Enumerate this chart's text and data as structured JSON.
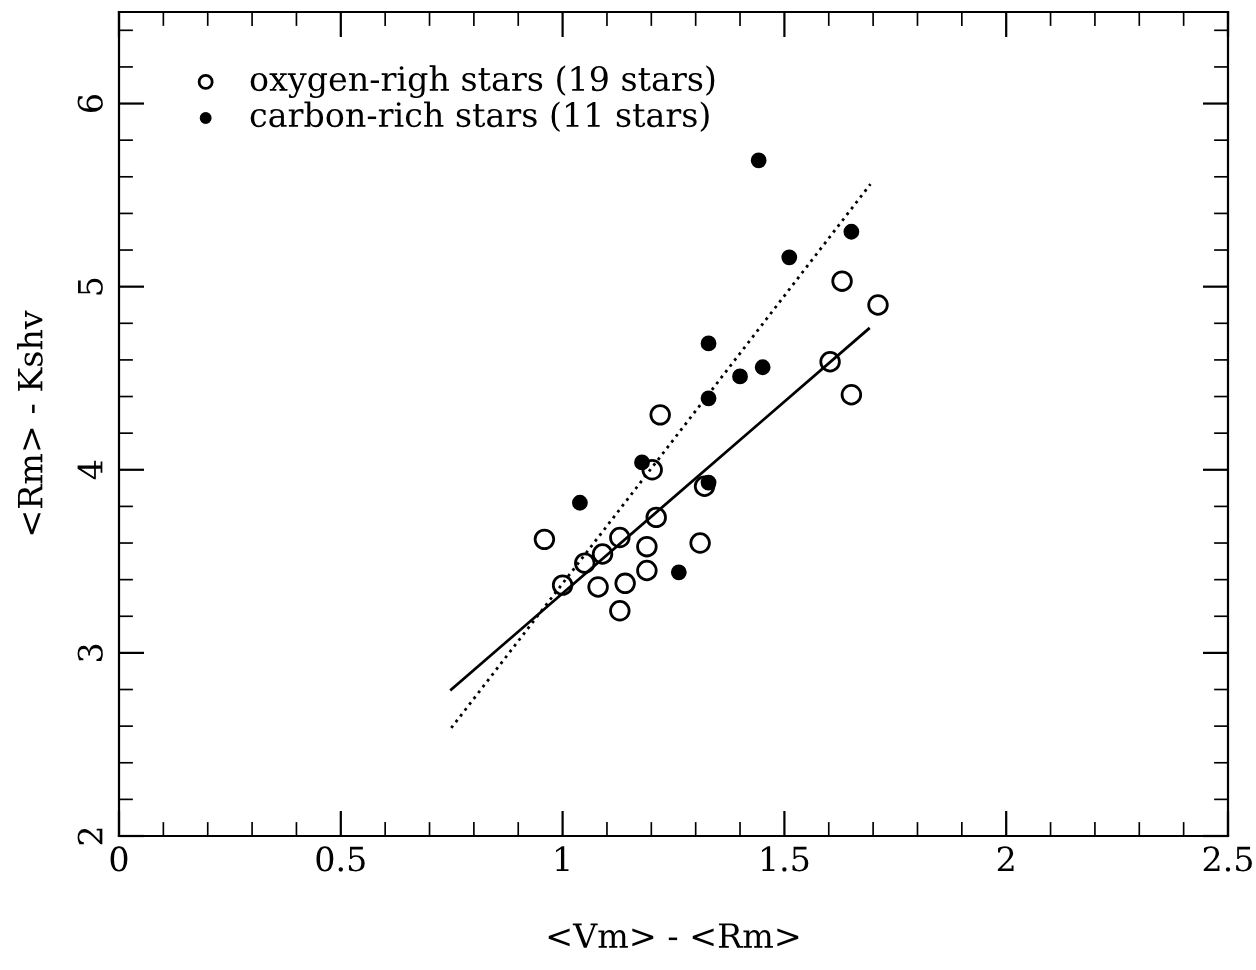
{
  "chart_data": {
    "type": "scatter",
    "xlabel": "<Vm> - <Rm>",
    "ylabel": "<Rm> - Kshv",
    "xlim": [
      0,
      2.5
    ],
    "ylim": [
      2,
      6.5
    ],
    "xticks": [
      0,
      0.5,
      1,
      1.5,
      2,
      2.5
    ],
    "yticks": [
      2,
      3,
      4,
      5,
      6
    ],
    "grid": false,
    "legend": "top left",
    "series": [
      {
        "name": "oxygen-righ stars (19 stars)",
        "color": "#000000",
        "marker": "circle",
        "x": [
          1.63,
          1.711,
          1.603,
          1.651,
          1.22,
          1.202,
          1.32,
          0.959,
          1.211,
          1.129,
          1.19,
          1.31,
          1.09,
          1.05,
          1.19,
          1.0,
          1.08,
          1.141,
          1.129
        ],
        "values": [
          5.03,
          4.9,
          4.59,
          4.41,
          4.3,
          4.0,
          3.91,
          3.62,
          3.74,
          3.63,
          3.58,
          3.6,
          3.54,
          3.49,
          3.45,
          3.37,
          3.36,
          3.38,
          3.23
        ]
      },
      {
        "name": "carbon-rich stars (11 stars)",
        "color": "#000000",
        "marker": "circle",
        "x": [
          1.442,
          1.651,
          1.511,
          1.329,
          1.451,
          1.4,
          1.329,
          1.179,
          1.039,
          1.329,
          1.262
        ],
        "values": [
          5.69,
          5.3,
          5.16,
          4.69,
          4.56,
          4.51,
          4.39,
          4.04,
          3.82,
          3.93,
          3.44
        ]
      },
      {
        "type": "line",
        "color": "#000000",
        "line_style": "solid",
        "x": [
          0.749,
          1.69
        ],
        "values": [
          2.8,
          4.77
        ]
      },
      {
        "type": "line",
        "color": "#000000",
        "line_style": "dotted",
        "x": [
          0.749,
          1.694
        ],
        "values": [
          2.59,
          5.56
        ]
      }
    ]
  }
}
